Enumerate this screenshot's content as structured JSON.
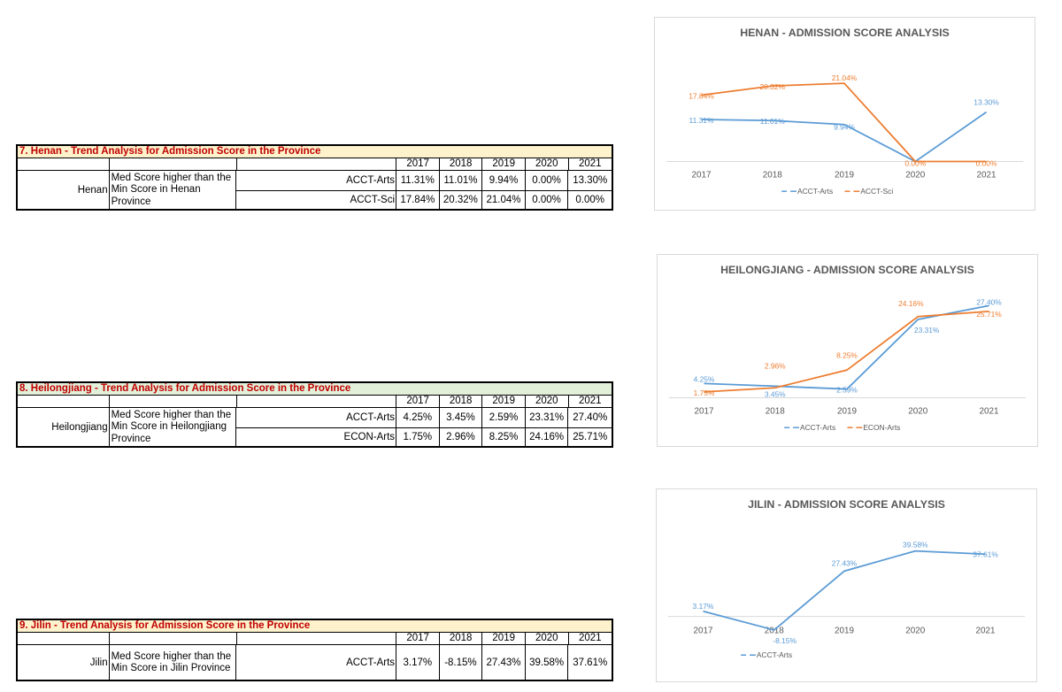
{
  "tables": [
    {
      "title": "7. Henan - Trend Analysis for Admission Score in the Province",
      "province": "Henan",
      "description": "Med Score higher than the Min Score in Henan Province",
      "years": [
        "2017",
        "2018",
        "2019",
        "2020",
        "2021"
      ],
      "rows": [
        {
          "label": "ACCT-Arts",
          "values": [
            "11.31%",
            "11.01%",
            "9.94%",
            "0.00%",
            "13.30%"
          ]
        },
        {
          "label": "ACCT-Sci",
          "values": [
            "17.84%",
            "20.32%",
            "21.04%",
            "0.00%",
            "0.00%"
          ]
        }
      ]
    },
    {
      "title": "8. Heilongjiang - Trend Analysis for Admission Score in the Province",
      "province": "Heilongjiang",
      "description": "Med Score higher than the Min Score in Heilongjiang Province",
      "years": [
        "2017",
        "2018",
        "2019",
        "2020",
        "2021"
      ],
      "rows": [
        {
          "label": "ACCT-Arts",
          "values": [
            "4.25%",
            "3.45%",
            "2.59%",
            "23.31%",
            "27.40%"
          ]
        },
        {
          "label": "ECON-Arts",
          "values": [
            "1.75%",
            "2.96%",
            "8.25%",
            "24.16%",
            "25.71%"
          ]
        }
      ]
    },
    {
      "title": "9. Jilin - Trend Analysis for Admission Score in the Province",
      "province": "Jilin",
      "description": "Med Score higher than the Min Score in Jilin Province",
      "years": [
        "2017",
        "2018",
        "2019",
        "2020",
        "2021"
      ],
      "rows": [
        {
          "label": "ACCT-Arts",
          "values": [
            "3.17%",
            "-8.15%",
            "27.43%",
            "39.58%",
            "37.61%"
          ]
        }
      ]
    }
  ],
  "colors": {
    "blue": "#5b9bd5",
    "orange": "#ed7d31",
    "title_red": "#c00000",
    "chart_title": "#595959"
  },
  "chart_data": [
    {
      "type": "line",
      "title": "HENAN - ADMISSION SCORE ANALYSIS",
      "categories": [
        "2017",
        "2018",
        "2019",
        "2020",
        "2021"
      ],
      "series": [
        {
          "name": "ACCT-Arts",
          "color": "#5b9bd5",
          "values": [
            11.31,
            11.01,
            9.94,
            0.0,
            13.3
          ],
          "labels": [
            "11.31%",
            "11.01%",
            "9.94%",
            "",
            "13.30%"
          ]
        },
        {
          "name": "ACCT-Sci",
          "color": "#ed7d31",
          "values": [
            17.84,
            20.32,
            21.04,
            0.0,
            0.0
          ],
          "labels": [
            "17.84%",
            "20.32%",
            "21.04%",
            "0.00%",
            "0.00%"
          ]
        }
      ],
      "ylim": [
        0,
        25
      ],
      "legend": "bottom",
      "grid": false
    },
    {
      "type": "line",
      "title": "HEILONGJIANG - ADMISSION SCORE ANALYSIS",
      "categories": [
        "2017",
        "2018",
        "2019",
        "2020",
        "2021"
      ],
      "series": [
        {
          "name": "ACCT-Arts",
          "color": "#5b9bd5",
          "values": [
            4.25,
            3.45,
            2.59,
            23.31,
            27.4
          ],
          "labels": [
            "4.25%",
            "3.45%",
            "2.59%",
            "23.31%",
            "27.40%"
          ]
        },
        {
          "name": "ECON-Arts",
          "color": "#ed7d31",
          "values": [
            1.75,
            2.96,
            8.25,
            24.16,
            25.71
          ],
          "labels": [
            "1.75%",
            "2.96%",
            "8.25%",
            "24.16%",
            "25.71%"
          ]
        }
      ],
      "ylim": [
        0,
        30
      ],
      "legend": "bottom",
      "grid": false
    },
    {
      "type": "line",
      "title": "JILIN - ADMISSION SCORE ANALYSIS",
      "categories": [
        "2017",
        "2018",
        "2019",
        "2020",
        "2021"
      ],
      "series": [
        {
          "name": "ACCT-Arts",
          "color": "#5b9bd5",
          "values": [
            3.17,
            -8.15,
            27.43,
            39.58,
            37.61
          ],
          "labels": [
            "3.17%",
            "-8.15%",
            "27.43%",
            "39.58%",
            "37.61%"
          ]
        }
      ],
      "ylim": [
        -10,
        45
      ],
      "legend": "bottom-left",
      "grid": false
    }
  ]
}
